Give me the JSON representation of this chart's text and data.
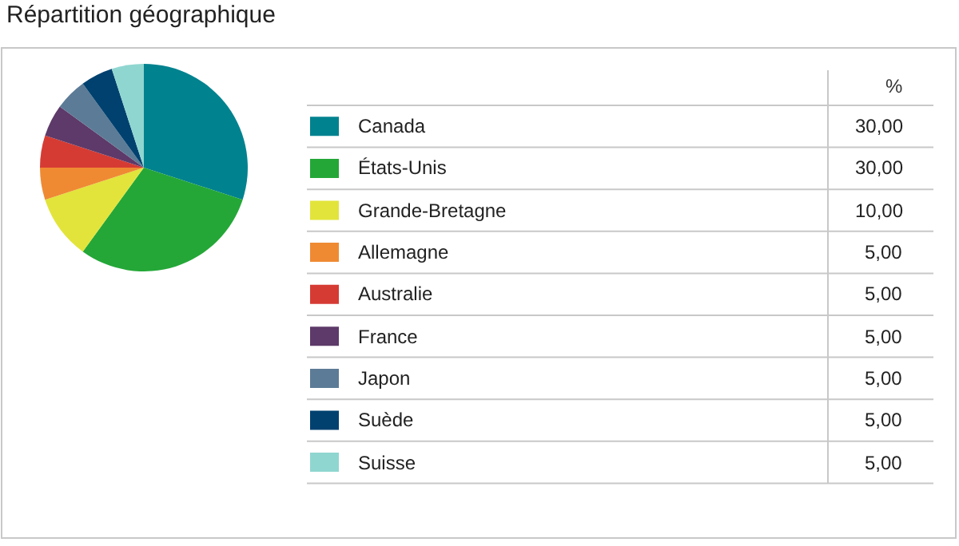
{
  "chart_data": {
    "type": "pie",
    "legend": "right",
    "title": "Répartition géographique",
    "legend_title": "%",
    "categories": [
      "Canada",
      "États-Unis",
      "Grande-Bretagne",
      "Allemagne",
      "Australie",
      "France",
      "Japon",
      "Suède",
      "Suisse"
    ],
    "values": [
      30,
      30,
      10,
      5,
      5,
      5,
      5,
      5,
      5
    ],
    "value_labels": [
      "30,00",
      "30,00",
      "10,00",
      "5,00",
      "5,00",
      "5,00",
      "5,00",
      "5,00",
      "5,00"
    ],
    "colors": [
      "#00828f",
      "#24a737",
      "#e2e43b",
      "#ef8a33",
      "#d63b33",
      "#5d3a69",
      "#5c7b96",
      "#00416f",
      "#8fd6d0"
    ]
  }
}
